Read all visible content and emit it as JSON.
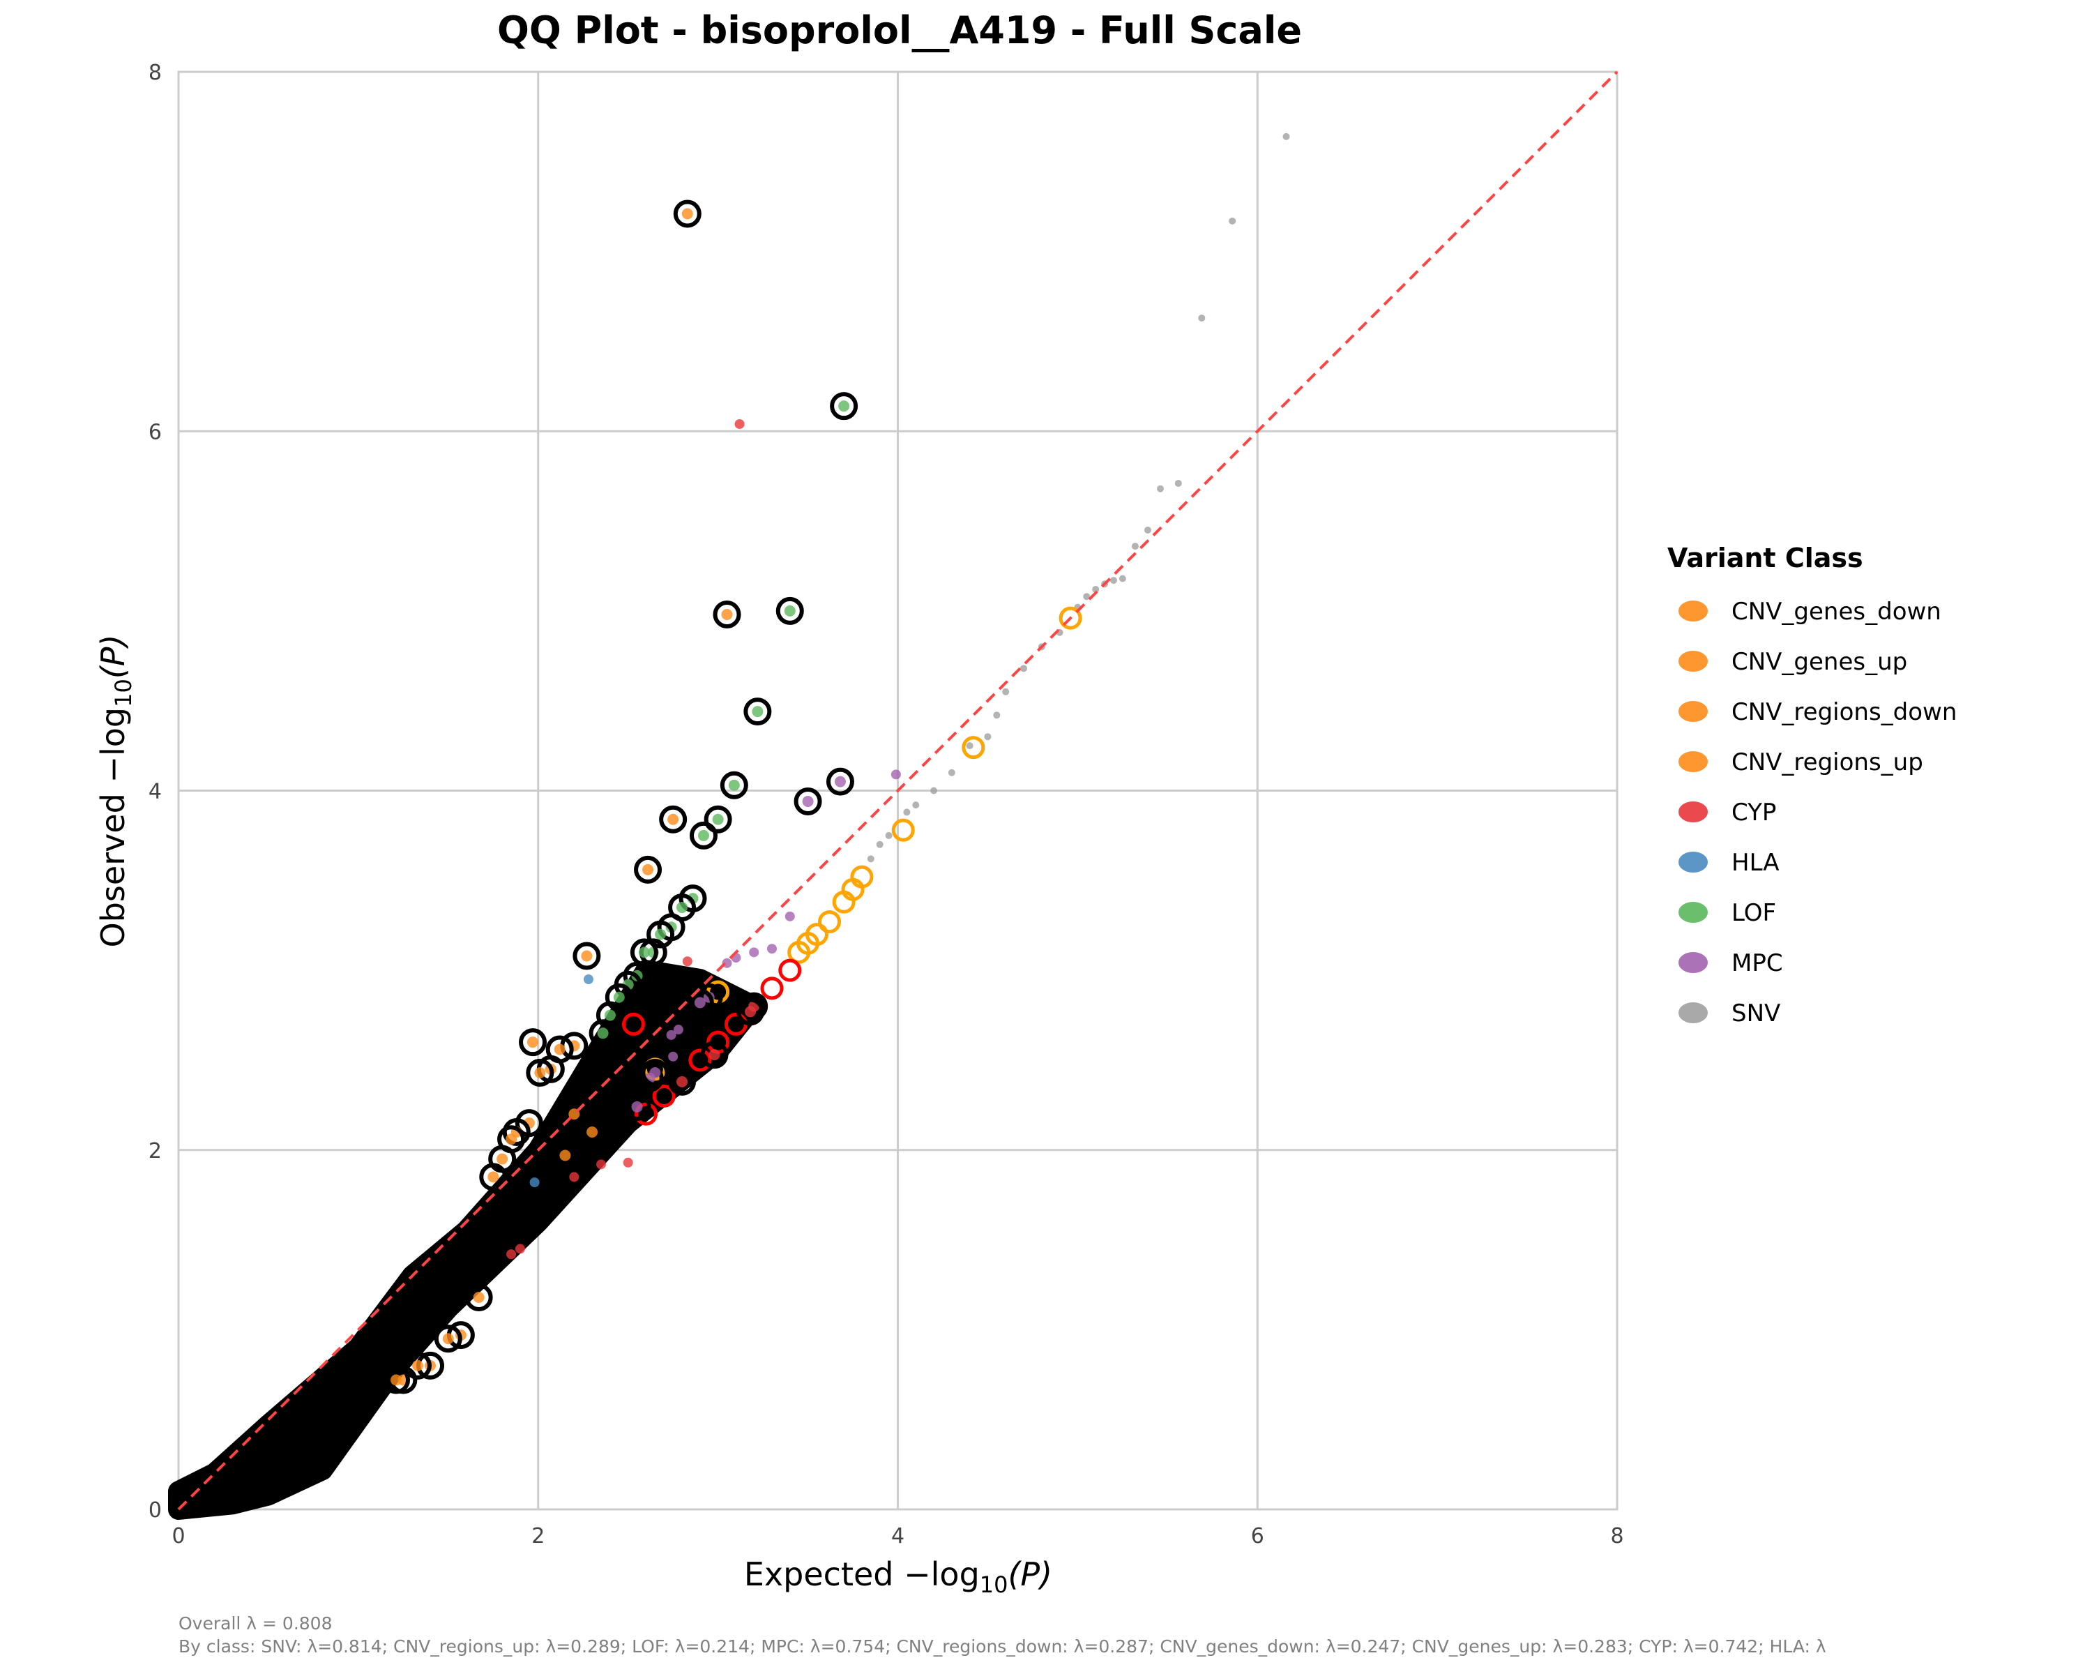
{
  "chart_data": {
    "type": "scatter",
    "title": "QQ Plot - bisoprolol__A419 - Full Scale",
    "xlabel": {
      "prefix": "Expected −log",
      "sub": "10",
      "suffix": "(P)"
    },
    "ylabel": {
      "prefix": "Observed −log",
      "sub": "10",
      "suffix": "(P)"
    },
    "xlim": [
      0,
      8
    ],
    "ylim": [
      0,
      8
    ],
    "xticks": [
      "0",
      "2",
      "4",
      "6",
      "8"
    ],
    "yticks": [
      "0",
      "2",
      "4",
      "6",
      "8"
    ],
    "grid": true,
    "reference_line": {
      "style": "dashed",
      "color": "#ff4444",
      "from": [
        0,
        0
      ],
      "to": [
        8,
        8
      ]
    },
    "legend": {
      "title": "Variant Class",
      "placement": "right",
      "entries": [
        {
          "name": "CNV_genes_down",
          "color": "#ff8c1a"
        },
        {
          "name": "CNV_genes_up",
          "color": "#ff8c1a"
        },
        {
          "name": "CNV_regions_down",
          "color": "#ff8c1a"
        },
        {
          "name": "CNV_regions_up",
          "color": "#ff8c1a"
        },
        {
          "name": "CYP",
          "color": "#e8363a"
        },
        {
          "name": "HLA",
          "color": "#4a8bc2"
        },
        {
          "name": "LOF",
          "color": "#5cb85c"
        },
        {
          "name": "MPC",
          "color": "#a463b0"
        },
        {
          "name": "SNV",
          "color": "#a0a0a0"
        }
      ]
    },
    "dense_cloud_envelope": [
      [
        0,
        0
      ],
      [
        0.3,
        0.03
      ],
      [
        0.5,
        0.08
      ],
      [
        0.8,
        0.22
      ],
      [
        1.0,
        0.5
      ],
      [
        1.2,
        0.78
      ],
      [
        1.5,
        1.12
      ],
      [
        2.0,
        1.6
      ],
      [
        2.5,
        2.15
      ],
      [
        3.0,
        2.55
      ],
      [
        3.2,
        2.8
      ],
      [
        2.9,
        2.95
      ],
      [
        2.6,
        3.0
      ],
      [
        2.3,
        2.5
      ],
      [
        2.0,
        2.0
      ],
      [
        1.6,
        1.55
      ],
      [
        1.3,
        1.3
      ],
      [
        1.0,
        0.9
      ],
      [
        0.5,
        0.47
      ],
      [
        0.2,
        0.2
      ],
      [
        0,
        0.1
      ]
    ],
    "points_highlighted": [
      [
        2.83,
        7.21,
        "CNV_genes_down"
      ],
      [
        3.7,
        6.14,
        "LOF"
      ],
      [
        3.4,
        5.0,
        "LOF"
      ],
      [
        3.05,
        4.98,
        "CNV_genes_up"
      ],
      [
        3.22,
        4.44,
        "LOF"
      ],
      [
        3.09,
        4.03,
        "LOF"
      ],
      [
        3.68,
        4.05,
        "MPC"
      ],
      [
        3.5,
        3.94,
        "MPC"
      ],
      [
        2.75,
        3.84,
        "CNV_genes_down"
      ],
      [
        3.0,
        3.84,
        "LOF"
      ],
      [
        2.92,
        3.75,
        "LOF"
      ],
      [
        2.61,
        3.56,
        "CNV_genes_down"
      ],
      [
        2.86,
        3.4,
        "LOF"
      ],
      [
        2.8,
        3.35,
        "LOF"
      ],
      [
        2.74,
        3.24,
        "LOF"
      ],
      [
        2.68,
        3.2,
        "LOF"
      ],
      [
        2.64,
        3.1,
        "LOF"
      ],
      [
        2.59,
        3.1,
        "LOF"
      ],
      [
        2.27,
        3.08,
        "CNV_genes_down"
      ],
      [
        2.55,
        2.97,
        "LOF"
      ],
      [
        2.5,
        2.92,
        "LOF"
      ],
      [
        2.45,
        2.85,
        "LOF"
      ],
      [
        2.4,
        2.75,
        "LOF"
      ],
      [
        2.36,
        2.65,
        "LOF"
      ],
      [
        1.97,
        2.6,
        "CNV_genes_down"
      ],
      [
        2.2,
        2.58,
        "CNV_genes_down"
      ],
      [
        2.12,
        2.56,
        "CNV_genes_down"
      ],
      [
        2.07,
        2.45,
        "CNV_genes_down"
      ],
      [
        2.01,
        2.43,
        "CNV_genes_down"
      ],
      [
        1.95,
        2.15,
        "CNV_genes_down"
      ],
      [
        1.88,
        2.1,
        "CNV_genes_down"
      ],
      [
        1.85,
        2.06,
        "CNV_genes_down"
      ],
      [
        1.8,
        1.95,
        "CNV_genes_down"
      ],
      [
        1.75,
        1.85,
        "CNV_genes_down"
      ],
      [
        2.2,
        2.2,
        "CNV_genes_down"
      ],
      [
        2.3,
        2.1,
        "CNV_genes_down"
      ],
      [
        2.15,
        1.97,
        "CNV_genes_down"
      ],
      [
        2.62,
        2.4,
        "MPC"
      ],
      [
        2.65,
        2.43,
        "MPC"
      ],
      [
        2.55,
        2.24,
        "MPC"
      ],
      [
        2.95,
        2.85,
        "MPC"
      ],
      [
        2.9,
        2.82,
        "MPC"
      ],
      [
        3.2,
        2.8,
        "CYP"
      ],
      [
        3.18,
        2.77,
        "CYP"
      ],
      [
        2.98,
        2.53,
        "CYP"
      ],
      [
        2.8,
        2.38,
        "CYP"
      ],
      [
        1.67,
        1.18,
        "CNV_genes_down"
      ],
      [
        1.57,
        0.97,
        "CNV_genes_down"
      ],
      [
        1.5,
        0.95,
        "CNV_genes_down"
      ],
      [
        1.4,
        0.8,
        "CNV_genes_down"
      ],
      [
        1.33,
        0.8,
        "CNV_genes_down"
      ],
      [
        1.25,
        0.72,
        "CNV_genes_down"
      ],
      [
        1.21,
        0.72,
        "CNV_genes_down"
      ]
    ],
    "points_open": [
      [
        4.96,
        4.96,
        "CNV_regions_up"
      ],
      [
        4.42,
        4.24,
        "CNV_regions_up"
      ],
      [
        4.03,
        3.78,
        "CNV_regions_up"
      ],
      [
        3.8,
        3.52,
        "CNV_regions_up"
      ],
      [
        3.75,
        3.45,
        "CNV_regions_up"
      ],
      [
        3.7,
        3.38,
        "CNV_regions_up"
      ],
      [
        3.62,
        3.27,
        "CNV_regions_up"
      ],
      [
        3.55,
        3.2,
        "CNV_regions_up"
      ],
      [
        3.5,
        3.15,
        "CNV_regions_up"
      ],
      [
        3.45,
        3.1,
        "CNV_regions_up"
      ],
      [
        3.0,
        2.88,
        "CNV_regions_up"
      ],
      [
        2.65,
        2.45,
        "CNV_regions_up"
      ],
      [
        2.53,
        2.7,
        "CYP"
      ],
      [
        3.4,
        3.0,
        "CYP"
      ],
      [
        3.3,
        2.9,
        "CYP"
      ],
      [
        3.1,
        2.7,
        "CYP"
      ],
      [
        3.0,
        2.6,
        "CYP"
      ],
      [
        2.9,
        2.5,
        "CYP"
      ],
      [
        2.7,
        2.3,
        "CYP"
      ],
      [
        2.6,
        2.2,
        "CYP"
      ]
    ],
    "points": [
      [
        3.12,
        6.04,
        "CYP"
      ],
      [
        2.83,
        3.05,
        "CYP"
      ],
      [
        2.35,
        1.92,
        "CYP"
      ],
      [
        2.5,
        1.93,
        "CYP"
      ],
      [
        2.2,
        1.85,
        "CYP"
      ],
      [
        1.9,
        1.45,
        "CYP"
      ],
      [
        1.85,
        1.42,
        "CYP"
      ],
      [
        2.28,
        2.95,
        "HLA"
      ],
      [
        1.98,
        1.82,
        "HLA"
      ],
      [
        3.99,
        4.09,
        "MPC"
      ],
      [
        3.4,
        3.3,
        "MPC"
      ],
      [
        3.3,
        3.12,
        "MPC"
      ],
      [
        3.2,
        3.1,
        "MPC"
      ],
      [
        3.1,
        3.07,
        "MPC"
      ],
      [
        3.05,
        3.04,
        "MPC"
      ],
      [
        2.78,
        2.67,
        "MPC"
      ],
      [
        2.74,
        2.64,
        "MPC"
      ],
      [
        2.75,
        2.52,
        "MPC"
      ],
      [
        4.05,
        3.88,
        "SNV"
      ],
      [
        4.1,
        3.92,
        "SNV"
      ],
      [
        4.2,
        4.0,
        "SNV"
      ],
      [
        4.3,
        4.1,
        "SNV"
      ],
      [
        4.4,
        4.25,
        "SNV"
      ],
      [
        4.5,
        4.3,
        "SNV"
      ],
      [
        4.55,
        4.42,
        "SNV"
      ],
      [
        4.6,
        4.55,
        "SNV"
      ],
      [
        4.7,
        4.68,
        "SNV"
      ],
      [
        4.8,
        4.8,
        "SNV"
      ],
      [
        4.9,
        4.88,
        "SNV"
      ],
      [
        5.0,
        5.02,
        "SNV"
      ],
      [
        5.05,
        5.08,
        "SNV"
      ],
      [
        5.1,
        5.12,
        "SNV"
      ],
      [
        5.15,
        5.15,
        "SNV"
      ],
      [
        5.2,
        5.17,
        "SNV"
      ],
      [
        5.25,
        5.18,
        "SNV"
      ],
      [
        5.32,
        5.36,
        "SNV"
      ],
      [
        5.39,
        5.45,
        "SNV"
      ],
      [
        5.46,
        5.68,
        "SNV"
      ],
      [
        5.56,
        5.71,
        "SNV"
      ],
      [
        5.69,
        6.63,
        "SNV"
      ],
      [
        5.86,
        7.17,
        "SNV"
      ],
      [
        6.16,
        7.64,
        "SNV"
      ],
      [
        3.85,
        3.62,
        "SNV"
      ],
      [
        3.9,
        3.7,
        "SNV"
      ],
      [
        3.95,
        3.75,
        "SNV"
      ]
    ]
  },
  "footer": {
    "overall": "Overall λ = 0.808",
    "by_class": "By class: SNV: λ=0.814; CNV_regions_up: λ=0.289; LOF: λ=0.214; MPC: λ=0.754; CNV_regions_down: λ=0.287; CNV_genes_down: λ=0.247; CNV_genes_up: λ=0.283; CYP: λ=0.742; HLA: λ"
  }
}
